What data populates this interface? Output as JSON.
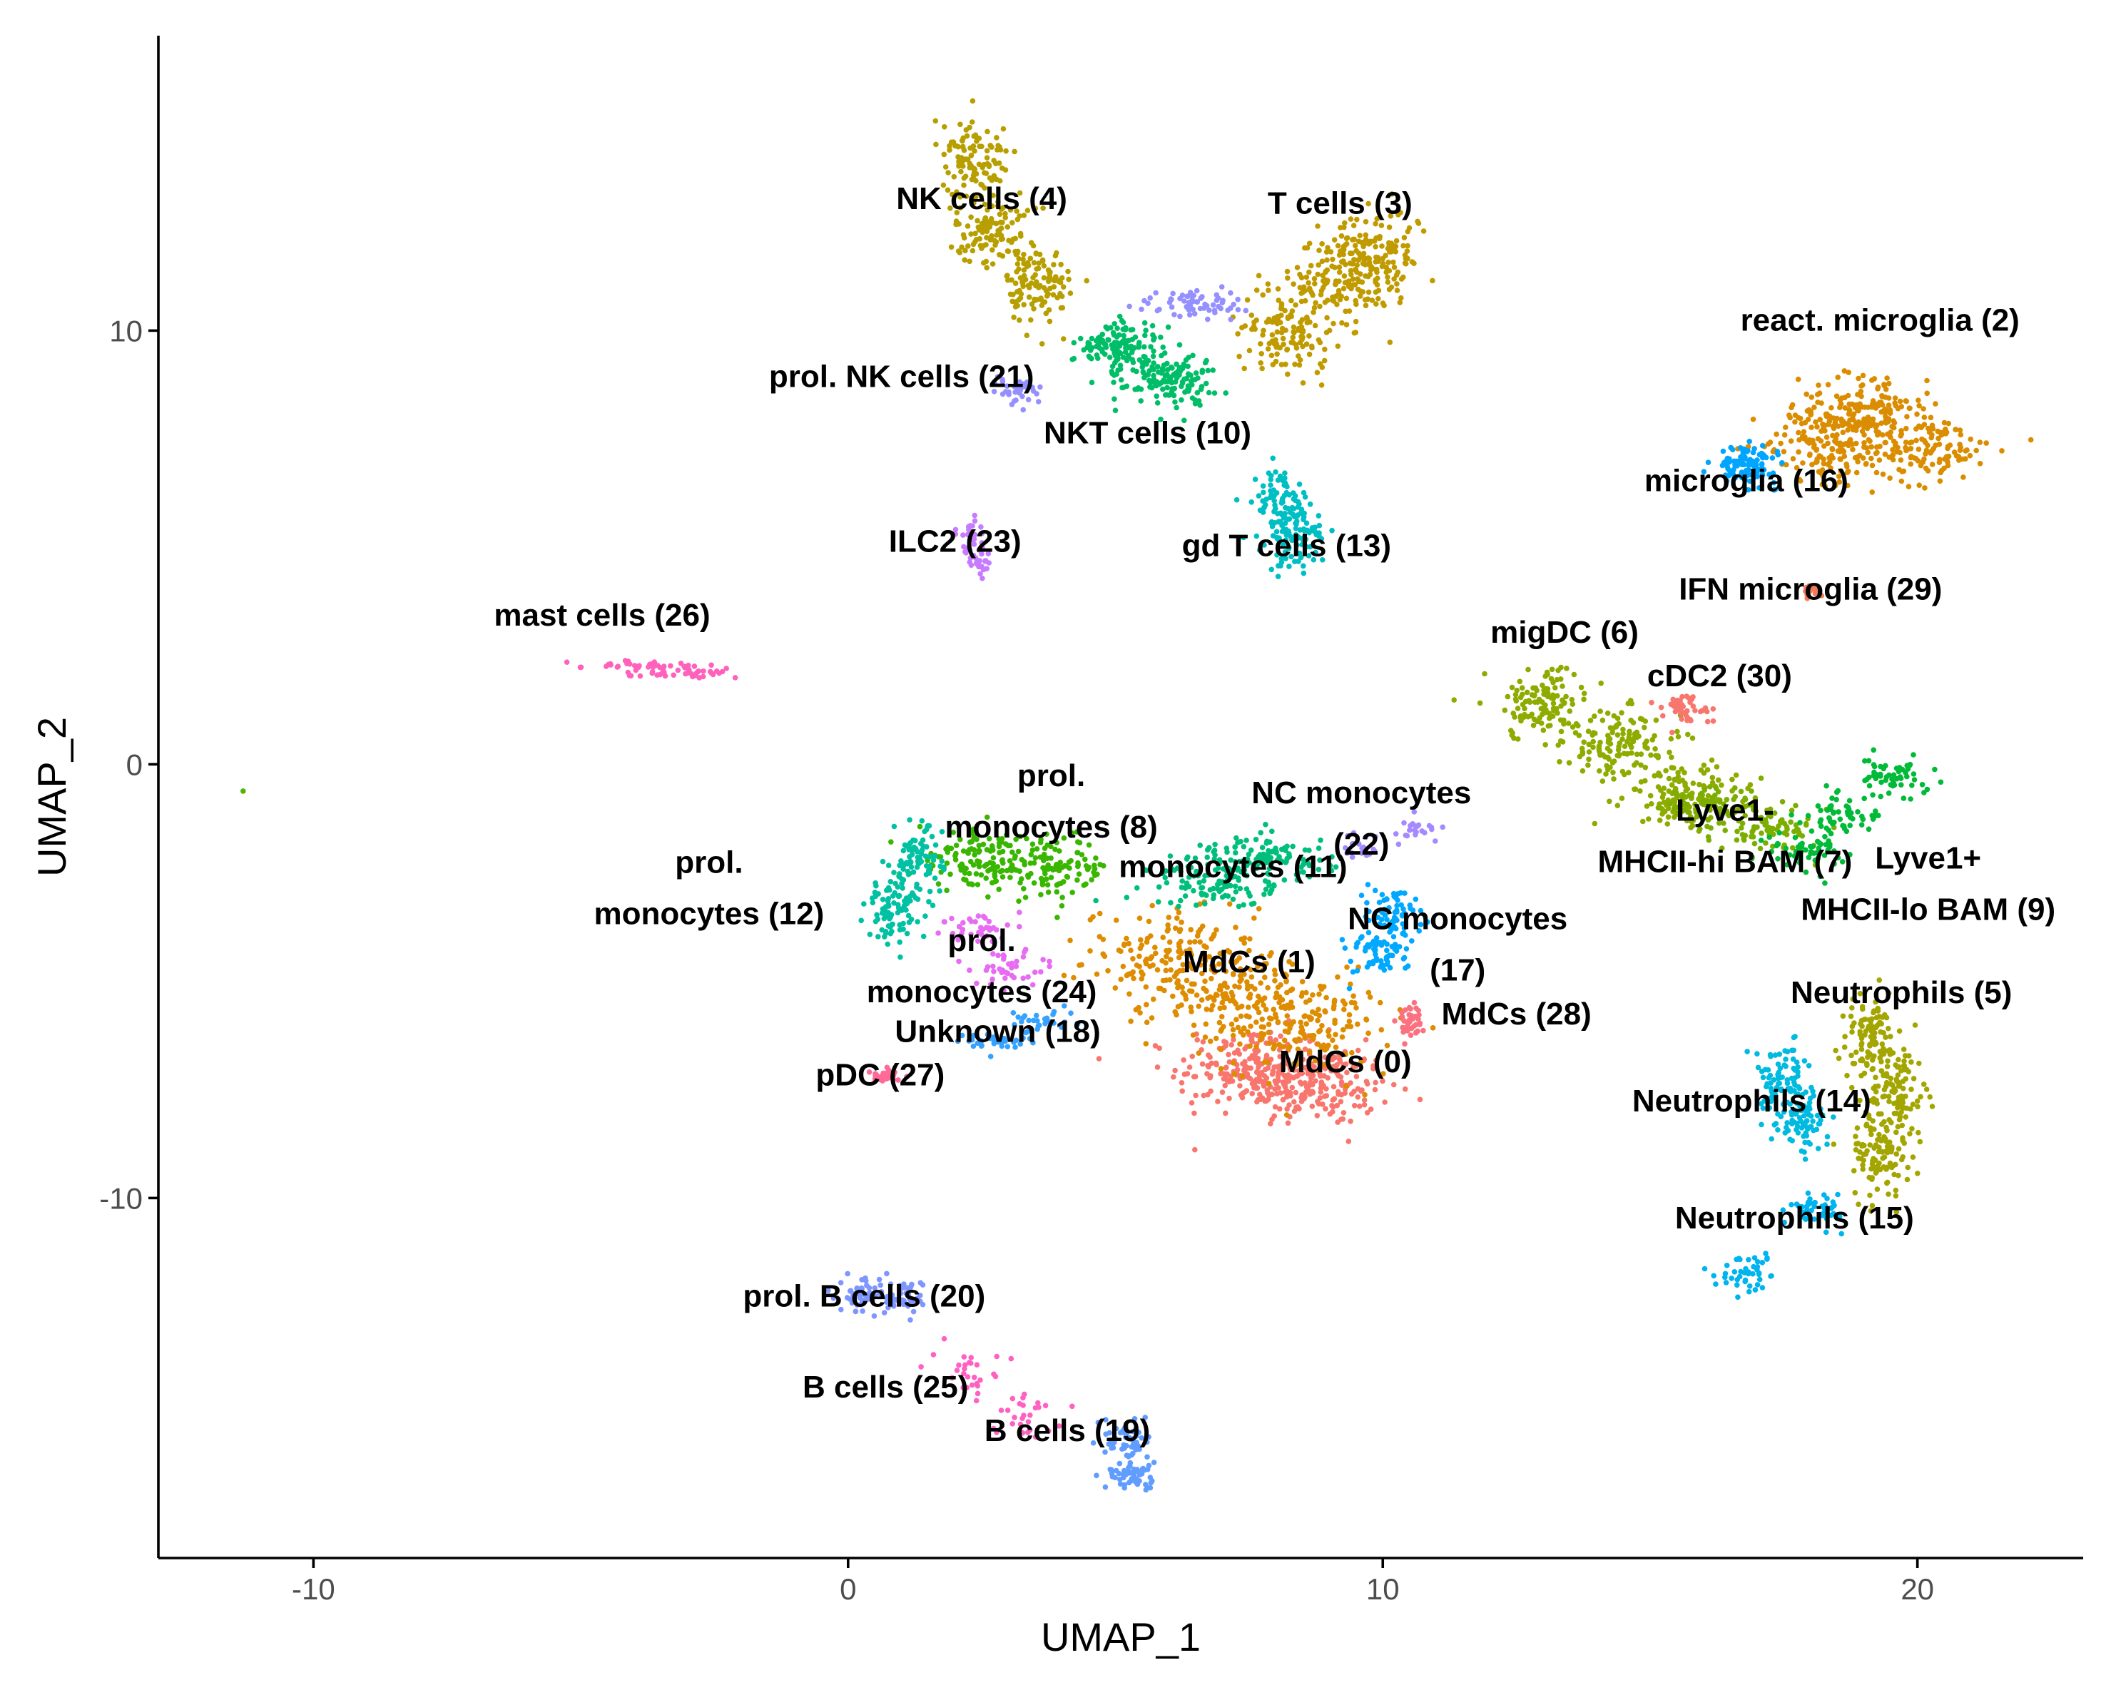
{
  "chart_data": {
    "type": "scatter",
    "title": "",
    "xlabel": "UMAP_1",
    "ylabel": "UMAP_2",
    "xlim": [
      -12.9,
      23.1
    ],
    "ylim": [
      -18.3,
      16.8
    ],
    "xticks": [
      -10,
      0,
      10,
      20
    ],
    "yticks": [
      -10,
      0,
      10
    ],
    "xtick_labels": [
      "-10",
      "0",
      "10",
      "20"
    ],
    "ytick_labels": [
      "-10",
      "0",
      "10"
    ],
    "grid": false,
    "legend": "none",
    "clusters": [
      {
        "id": 0,
        "color": "#F8766D",
        "label_lines": [
          "MdCs (0)"
        ],
        "label_pos": [
          9.3,
          -7.1
        ],
        "centers": [
          [
            8.7,
            -7.4
          ],
          [
            7.6,
            -7.0
          ]
        ],
        "spread": [
          1.2,
          0.75
        ],
        "n": 420
      },
      {
        "id": 1,
        "color": "#DE8C00",
        "label_lines": [
          "MdCs (1)"
        ],
        "label_pos": [
          7.5,
          -4.8
        ],
        "centers": [
          [
            7.2,
            -5.4
          ],
          [
            6.0,
            -4.4
          ],
          [
            8.6,
            -6.0
          ]
        ],
        "spread": [
          1.3,
          0.9
        ],
        "n": 480
      },
      {
        "id": 2,
        "color": "#DA8D00",
        "label_lines": [
          "react. microglia (2)"
        ],
        "label_pos": [
          19.3,
          10.0
        ],
        "centers": [
          [
            19.0,
            8.2
          ],
          [
            20.2,
            7.3
          ],
          [
            18.3,
            7.4
          ]
        ],
        "spread": [
          1.0,
          0.7
        ],
        "n": 440
      },
      {
        "id": 3,
        "color": "#C09B00",
        "label_lines": [
          "T cells (3)"
        ],
        "label_pos": [
          9.2,
          12.7
        ],
        "centers": [
          [
            9.2,
            11.2
          ],
          [
            8.2,
            10.0
          ],
          [
            9.9,
            11.8
          ]
        ],
        "spread": [
          0.75,
          0.85
        ],
        "n": 400
      },
      {
        "id": 4,
        "color": "#B79F00",
        "label_lines": [
          "NK cells (4)"
        ],
        "label_pos": [
          2.5,
          12.8
        ],
        "centers": [
          [
            2.3,
            14.0
          ],
          [
            2.7,
            12.3
          ],
          [
            3.6,
            11.0
          ]
        ],
        "spread": [
          0.55,
          0.75
        ],
        "n": 330
      },
      {
        "id": 5,
        "color": "#A3A500",
        "label_lines": [
          "Neutrophils (5)"
        ],
        "label_pos": [
          19.7,
          -5.5
        ],
        "centers": [
          [
            19.6,
            -7.5
          ],
          [
            19.3,
            -9.0
          ],
          [
            19.1,
            -6.4
          ]
        ],
        "spread": [
          0.45,
          0.85
        ],
        "n": 320
      },
      {
        "id": 6,
        "color": "#8EAB00",
        "label_lines": [
          "migDC (6)"
        ],
        "label_pos": [
          13.4,
          2.8
        ],
        "centers": [
          [
            13.0,
            1.4
          ],
          [
            14.5,
            0.4
          ],
          [
            15.6,
            -0.7
          ]
        ],
        "spread": [
          0.9,
          0.65
        ],
        "n": 380
      },
      {
        "id": 7,
        "color": "#7CAE00",
        "label_lines": [
          "Lyve1-",
          "MHCII-hi BAM (7)"
        ],
        "label_pos": [
          16.4,
          -1.3
        ],
        "centers": [
          [
            16.2,
            -1.0
          ],
          [
            17.3,
            -1.5
          ]
        ],
        "spread": [
          0.8,
          0.4
        ],
        "n": 160
      },
      {
        "id": 8,
        "color": "#39B600",
        "label_lines": [
          "prol.",
          "monocytes (8)"
        ],
        "label_pos": [
          3.8,
          -0.5
        ],
        "centers": [
          [
            3.8,
            -2.4
          ],
          [
            2.4,
            -2.2
          ]
        ],
        "spread": [
          0.9,
          0.55
        ],
        "n": 240
      },
      {
        "id": 9,
        "color": "#00BA38",
        "label_lines": [
          "Lyve1+",
          "MHCII-lo BAM (9)"
        ],
        "label_pos": [
          20.2,
          -2.4
        ],
        "centers": [
          [
            18.6,
            -1.2
          ],
          [
            19.5,
            -0.3
          ],
          [
            17.9,
            -2.0
          ]
        ],
        "spread": [
          0.6,
          0.35
        ],
        "n": 170
      },
      {
        "id": 10,
        "color": "#00BE67",
        "label_lines": [
          "NKT cells (10)"
        ],
        "label_pos": [
          5.6,
          7.4
        ],
        "centers": [
          [
            6.0,
            8.9
          ],
          [
            5.1,
            9.6
          ]
        ],
        "spread": [
          0.7,
          0.5
        ],
        "n": 260
      },
      {
        "id": 11,
        "color": "#00BF7D",
        "label_lines": [
          "monocytes (11)"
        ],
        "label_pos": [
          7.2,
          -2.6
        ],
        "centers": [
          [
            7.9,
            -2.2
          ],
          [
            6.8,
            -2.7
          ]
        ],
        "spread": [
          1.0,
          0.5
        ],
        "n": 220
      },
      {
        "id": 12,
        "color": "#00C1A3",
        "label_lines": [
          "prol.",
          "monocytes (12)"
        ],
        "label_pos": [
          -2.6,
          -2.5
        ],
        "centers": [
          [
            0.8,
            -3.4
          ],
          [
            1.3,
            -2.3
          ]
        ],
        "spread": [
          0.4,
          0.7
        ],
        "n": 170
      },
      {
        "id": 13,
        "color": "#00BFC4",
        "label_lines": [
          "gd T cells (13)"
        ],
        "label_pos": [
          8.2,
          4.8
        ],
        "centers": [
          [
            8.4,
            5.2
          ],
          [
            8.1,
            6.0
          ]
        ],
        "spread": [
          0.45,
          0.65
        ],
        "n": 170
      },
      {
        "id": 14,
        "color": "#00BAE0",
        "label_lines": [
          "Neutrophils (14)"
        ],
        "label_pos": [
          16.9,
          -8.0
        ],
        "centers": [
          [
            17.8,
            -8.2
          ],
          [
            17.5,
            -7.2
          ]
        ],
        "spread": [
          0.45,
          0.6
        ],
        "n": 160
      },
      {
        "id": 15,
        "color": "#00B4EF",
        "label_lines": [
          "Neutrophils (15)"
        ],
        "label_pos": [
          17.7,
          -10.7
        ],
        "centers": [
          [
            18.1,
            -10.2
          ],
          [
            16.9,
            -11.7
          ]
        ],
        "spread": [
          0.5,
          0.35
        ],
        "n": 90
      },
      {
        "id": 16,
        "color": "#00A5FF",
        "label_lines": [
          "microglia (16)"
        ],
        "label_pos": [
          16.8,
          6.3
        ],
        "centers": [
          [
            16.8,
            6.9
          ]
        ],
        "spread": [
          0.45,
          0.35
        ],
        "n": 110
      },
      {
        "id": 17,
        "color": "#00A9FF",
        "label_lines": [
          "NC monocytes",
          "(17)"
        ],
        "label_pos": [
          11.4,
          -3.8
        ],
        "centers": [
          [
            10.2,
            -3.4
          ],
          [
            9.9,
            -4.4
          ]
        ],
        "spread": [
          0.5,
          0.55
        ],
        "n": 130
      },
      {
        "id": 18,
        "color": "#35A2FF",
        "label_lines": [
          "Unknown (18)"
        ],
        "label_pos": [
          2.8,
          -6.4
        ],
        "centers": [
          [
            2.7,
            -6.4
          ],
          [
            3.6,
            -5.9
          ]
        ],
        "spread": [
          0.55,
          0.2
        ],
        "n": 60
      },
      {
        "id": 19,
        "color": "#619CFF",
        "label_lines": [
          "B cells (19)"
        ],
        "label_pos": [
          4.1,
          -15.6
        ],
        "centers": [
          [
            5.2,
            -15.6
          ],
          [
            5.3,
            -16.4
          ]
        ],
        "spread": [
          0.35,
          0.35
        ],
        "n": 110
      },
      {
        "id": 20,
        "color": "#7F96FF",
        "label_lines": [
          "prol. B cells (20)"
        ],
        "label_pos": [
          0.3,
          -12.5
        ],
        "centers": [
          [
            0.3,
            -12.2
          ],
          [
            1.0,
            -12.3
          ]
        ],
        "spread": [
          0.35,
          0.35
        ],
        "n": 110
      },
      {
        "id": 21,
        "color": "#9590FF",
        "label_lines": [
          "prol. NK cells (21)"
        ],
        "label_pos": [
          1.0,
          8.7
        ],
        "centers": [
          [
            6.2,
            10.6
          ],
          [
            7.0,
            10.6
          ],
          [
            3.1,
            8.6
          ]
        ],
        "spread": [
          0.55,
          0.3
        ],
        "n": 100
      },
      {
        "id": 22,
        "color": "#A58AFF",
        "label_lines": [
          "NC monocytes",
          "(22)"
        ],
        "label_pos": [
          9.6,
          -0.9
        ],
        "centers": [
          [
            10.6,
            -1.5
          ],
          [
            9.6,
            -1.9
          ]
        ],
        "spread": [
          0.35,
          0.3
        ],
        "n": 45
      },
      {
        "id": 23,
        "color": "#C77CFF",
        "label_lines": [
          "ILC2 (23)"
        ],
        "label_pos": [
          2.0,
          4.9
        ],
        "centers": [
          [
            2.3,
            5.3
          ],
          [
            2.5,
            4.7
          ]
        ],
        "spread": [
          0.2,
          0.35
        ],
        "n": 50
      },
      {
        "id": 24,
        "color": "#E76BF3",
        "label_lines": [
          "prol.",
          "monocytes (24)"
        ],
        "label_pos": [
          2.5,
          -4.3
        ],
        "centers": [
          [
            3.0,
            -4.7
          ],
          [
            2.3,
            -3.8
          ]
        ],
        "spread": [
          0.55,
          0.35
        ],
        "n": 75
      },
      {
        "id": 25,
        "color": "#FF61C3",
        "label_lines": [
          "B cells (25)"
        ],
        "label_pos": [
          0.7,
          -14.6
        ],
        "centers": [
          [
            2.2,
            -13.9
          ],
          [
            3.3,
            -15.0
          ]
        ],
        "spread": [
          0.5,
          0.45
        ],
        "n": 55
      },
      {
        "id": 26,
        "color": "#FF62BC",
        "label_lines": [
          "mast cells (26)"
        ],
        "label_pos": [
          -4.6,
          3.2
        ],
        "centers": [
          [
            -4.0,
            2.3
          ],
          [
            -3.0,
            2.1
          ]
        ],
        "spread": [
          1.0,
          0.08
        ],
        "n": 70
      },
      {
        "id": 27,
        "color": "#FF6A98",
        "label_lines": [
          "pDC (27)"
        ],
        "label_pos": [
          0.6,
          -7.4
        ],
        "centers": [
          [
            0.7,
            -7.2
          ]
        ],
        "spread": [
          0.25,
          0.12
        ],
        "n": 35
      },
      {
        "id": 28,
        "color": "#FC717F",
        "label_lines": [
          "MdCs (28)"
        ],
        "label_pos": [
          12.5,
          -6.0
        ],
        "centers": [
          [
            10.5,
            -5.9
          ]
        ],
        "spread": [
          0.2,
          0.3
        ],
        "n": 40
      },
      {
        "id": 29,
        "color": "#F37B59",
        "label_lines": [
          "IFN microglia (29)"
        ],
        "label_pos": [
          18.0,
          3.8
        ],
        "centers": [
          [
            18.0,
            4.0
          ]
        ],
        "spread": [
          0.15,
          0.15
        ],
        "n": 18
      },
      {
        "id": 30,
        "color": "#F8766D",
        "label_lines": [
          "cDC2 (30)"
        ],
        "label_pos": [
          16.3,
          1.8
        ],
        "centers": [
          [
            15.6,
            1.3
          ]
        ],
        "spread": [
          0.45,
          0.3
        ],
        "n": 45
      },
      {
        "id": 31,
        "color": "#53B400",
        "label_lines": [],
        "label_pos": null,
        "centers": [
          [
            -11.3,
            -0.6
          ]
        ],
        "spread": [
          0.02,
          0.02
        ],
        "n": 1
      }
    ]
  }
}
